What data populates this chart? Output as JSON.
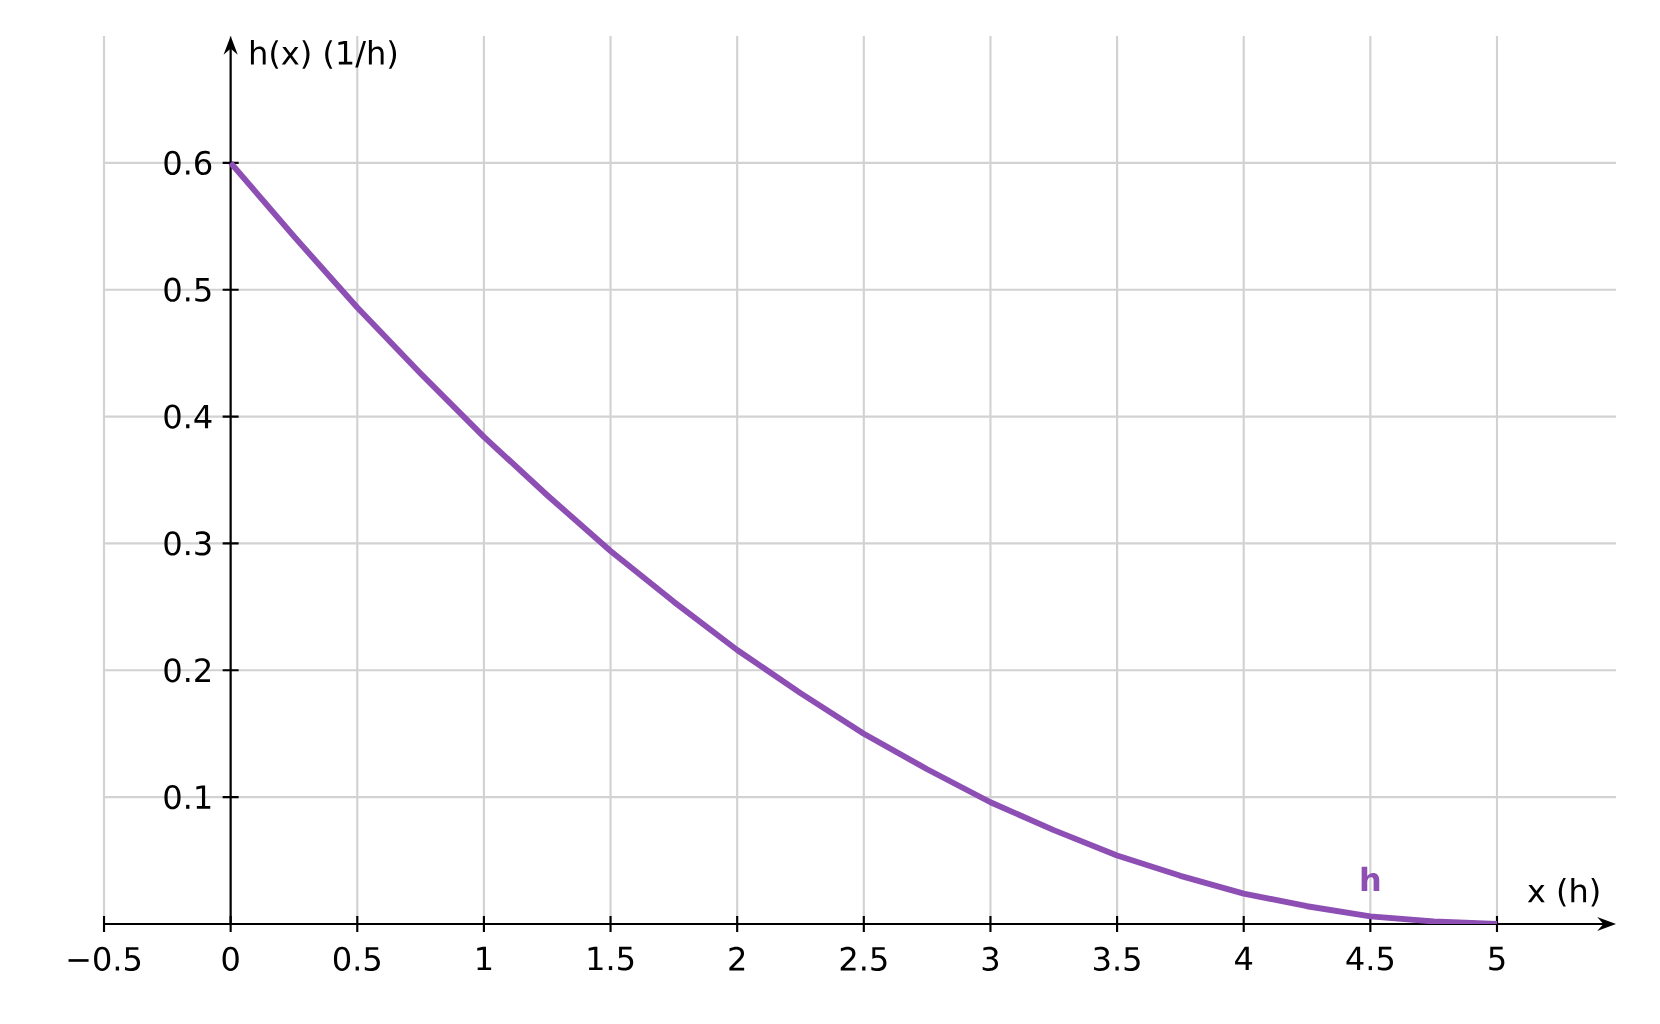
{
  "chart_data": {
    "type": "line",
    "xlabel": "x (h)",
    "ylabel": "h(x) (1/h)",
    "series": [
      {
        "name": "h",
        "color": "#8e4fb5",
        "x": [
          0,
          0.25,
          0.5,
          0.75,
          1,
          1.25,
          1.5,
          1.75,
          2,
          2.25,
          2.5,
          2.75,
          3,
          3.25,
          3.5,
          3.75,
          4,
          4.25,
          4.5,
          4.75,
          5
        ],
        "values": [
          0.6,
          0.542,
          0.486,
          0.434,
          0.384,
          0.338,
          0.294,
          0.254,
          0.216,
          0.182,
          0.15,
          0.122,
          0.096,
          0.074,
          0.054,
          0.038,
          0.024,
          0.014,
          0.006,
          0.002,
          0
        ]
      }
    ],
    "xlim": [
      -0.5,
      5.47
    ],
    "ylim": [
      0,
      0.7
    ],
    "xticks": [
      {
        "value": -0.5,
        "label": "−0.5"
      },
      0,
      0.5,
      1,
      1.5,
      2,
      2.5,
      3,
      3.5,
      4,
      4.5,
      5
    ],
    "yticks": [
      0.1,
      0.2,
      0.3,
      0.4,
      0.5,
      0.6
    ],
    "grid": true,
    "legend": false,
    "marker": "none",
    "line_style": "solid"
  }
}
